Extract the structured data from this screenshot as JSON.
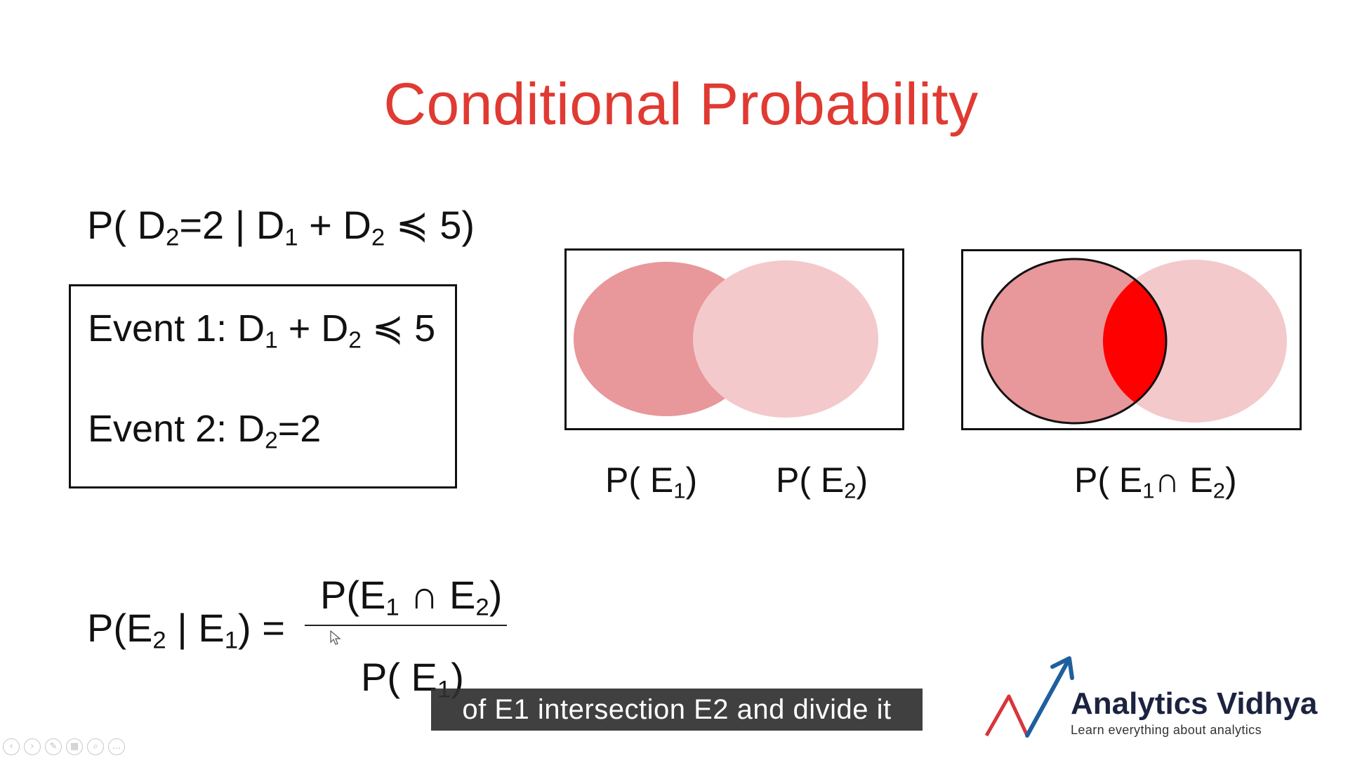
{
  "slide": {
    "title": "Conditional Probability"
  },
  "condition_formula": {
    "p_open": "P( D",
    "s1": "2",
    "t1": "=2 | D",
    "s2": "1",
    "t2": " + D",
    "s3": "2",
    "t3": " ≼ 5)"
  },
  "events": {
    "event1": {
      "text": "Event 1: D",
      "s1": "1",
      "t1": " + D",
      "s2": "2",
      "t2": " ≼ 5"
    },
    "event2": {
      "text": "Event 2: D",
      "s1": "2",
      "t1": "=2"
    }
  },
  "venn": {
    "label_e1": {
      "text": "P( E",
      "sub": "1",
      "close": ")"
    },
    "label_e2": {
      "text": "P( E",
      "sub": "2",
      "close": ")"
    },
    "label_intersection": {
      "text": "P( E",
      "s1": "1",
      "mid": "∩ E",
      "s2": "2",
      "close": ")"
    },
    "colors": {
      "e1": "#e8979a",
      "e2": "#f4c9cb",
      "intersection": "#ff0000",
      "outline": "#111111"
    }
  },
  "bayes_formula": {
    "lhs_p": "P(E",
    "lhs_s1": "2",
    "lhs_mid": " | E",
    "lhs_s2": "1",
    "lhs_close": ") =",
    "num_p": "P(E",
    "num_s1": "1",
    "num_mid": " ∩ E",
    "num_s2": "2",
    "num_close": ")",
    "den_p": "P( E",
    "den_s1": "1",
    "den_close": ")"
  },
  "subtitle": {
    "caption": "of E1 intersection E2 and divide it"
  },
  "logo": {
    "name": "Analytics Vidhya",
    "tagline": "Learn everything about analytics",
    "colors": {
      "arrow_blue": "#1f5f9e",
      "arrow_red": "#d8353a",
      "text": "#1b2340"
    }
  },
  "player_controls": {
    "icons": [
      "prev-icon",
      "next-icon",
      "pen-icon",
      "grid-icon",
      "zoom-icon",
      "more-icon"
    ],
    "glyphs": [
      "‹",
      "›",
      "✎",
      "▦",
      "⌕",
      "…"
    ]
  },
  "theme": {
    "title_color": "#e03a32"
  }
}
